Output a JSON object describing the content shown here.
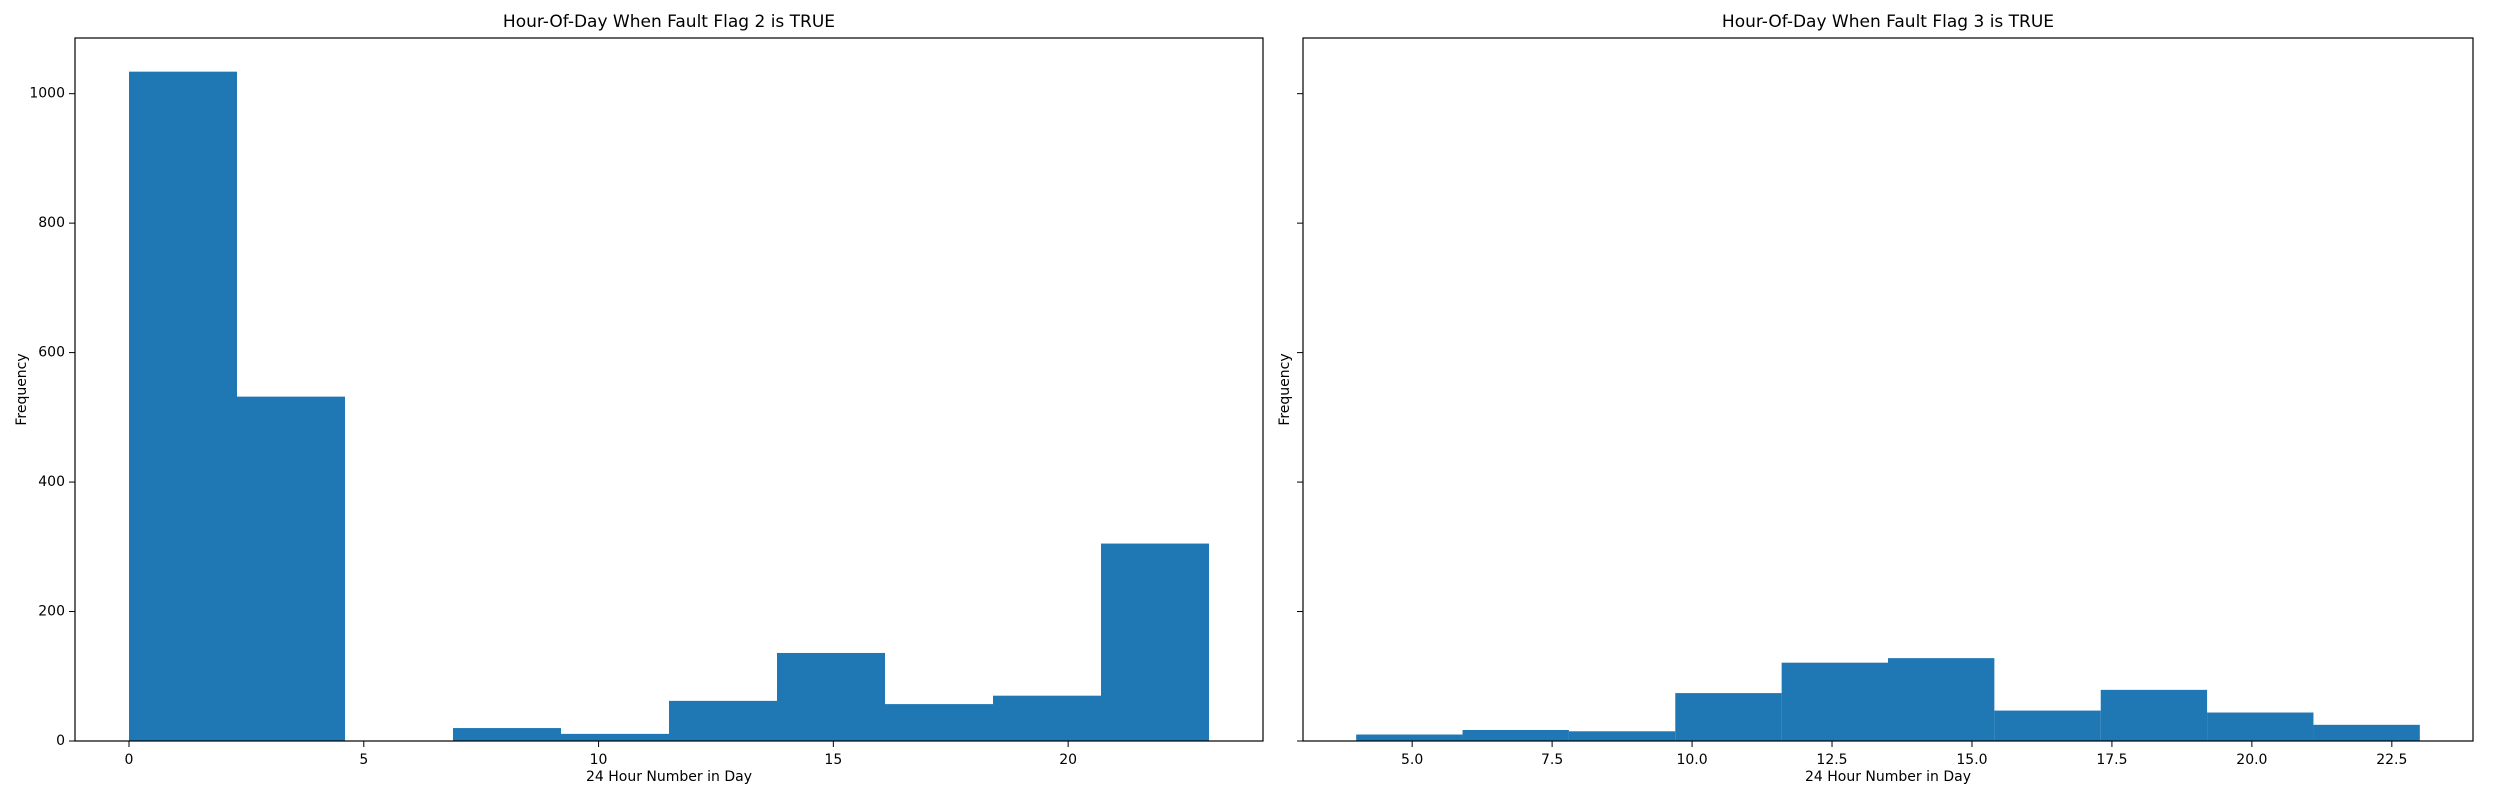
{
  "chart_data": [
    {
      "type": "histogram",
      "title": "Hour-Of-Day When Fault Flag 2 is TRUE",
      "xlabel": "24 Hour Number in Day",
      "ylabel": "Frequency",
      "bins": [
        0,
        2.3,
        4.6,
        6.9,
        9.2,
        11.5,
        13.8,
        16.1,
        18.4,
        20.7,
        23
      ],
      "values": [
        1034,
        532,
        0,
        20,
        11,
        62,
        136,
        57,
        70,
        305
      ],
      "color": "#1f77b4",
      "xlim": [
        -1.15,
        24.15
      ],
      "ylim": [
        0,
        1086
      ],
      "xticks": [
        0,
        5,
        10,
        15,
        20
      ],
      "yticks": [
        0,
        200,
        400,
        600,
        800,
        1000
      ],
      "ytick_labels": true
    },
    {
      "type": "histogram",
      "title": "Hour-Of-Day When Fault Flag 3 is TRUE",
      "xlabel": "24 Hour Number in Day",
      "ylabel": "Frequency",
      "bins": [
        4,
        5.9,
        7.8,
        9.7,
        11.6,
        13.5,
        15.4,
        17.3,
        19.2,
        21.1,
        23
      ],
      "values": [
        10,
        17,
        15,
        74,
        121,
        128,
        47,
        79,
        44,
        25
      ],
      "color": "#1f77b4",
      "xlim": [
        3.05,
        23.95
      ],
      "ylim": [
        0,
        1086
      ],
      "xticks": [
        {
          "value": 5,
          "label": "5.0"
        },
        7.5,
        {
          "value": 10,
          "label": "10.0"
        },
        12.5,
        {
          "value": 15,
          "label": "15.0"
        },
        17.5,
        {
          "value": 20,
          "label": "20.0"
        },
        22.5
      ],
      "yticks": [
        0,
        200,
        400,
        600,
        800,
        1000
      ],
      "ytick_labels": false
    }
  ]
}
